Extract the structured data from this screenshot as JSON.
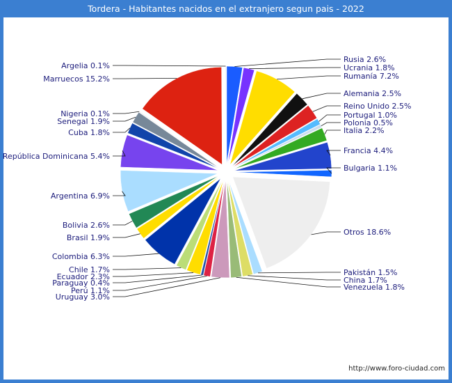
{
  "title": "Tordera - Habitantes nacidos en el extranjero segun pais - 2022",
  "source": "http://www.foro-ciudad.com",
  "chart_data": {
    "type": "pie",
    "title": "Tordera - Habitantes nacidos en el extranjero segun pais - 2022",
    "slices": [
      {
        "label": "Rusia",
        "value": 2.6,
        "display": "Rusia 2.6%",
        "color": "#1a5cff"
      },
      {
        "label": "Ucrania",
        "value": 1.8,
        "display": "Ucrania 1.8%",
        "color": "#7733ff"
      },
      {
        "label": "Rumanía",
        "value": 7.2,
        "display": "Rumanía 7.2%",
        "color": "#ffdd00"
      },
      {
        "label": "Alemania",
        "value": 2.5,
        "display": "Alemania 2.5%",
        "color": "#111111"
      },
      {
        "label": "Reino Unido",
        "value": 2.5,
        "display": "Reino Unido 2.5%",
        "color": "#dd2222"
      },
      {
        "label": "Portugal",
        "value": 1.0,
        "display": "Portugal 1.0%",
        "color": "#55bbff"
      },
      {
        "label": "Polonia",
        "value": 0.5,
        "display": "Polonia 0.5%",
        "color": "#ccddee"
      },
      {
        "label": "Italia",
        "value": 2.2,
        "display": "Italia 2.2%",
        "color": "#33aa22"
      },
      {
        "label": "Francia",
        "value": 4.4,
        "display": "Francia 4.4%",
        "color": "#2244cc"
      },
      {
        "label": "Bulgaria",
        "value": 1.1,
        "display": "Bulgaria 1.1%",
        "color": "#1166ff"
      },
      {
        "label": "Otros",
        "value": 18.6,
        "display": "Otros 18.6%",
        "color": "#eeeeee"
      },
      {
        "label": "Pakistán",
        "value": 1.5,
        "display": "Pakistán 1.5%",
        "color": "#aaddff"
      },
      {
        "label": "China",
        "value": 1.7,
        "display": "China 1.7%",
        "color": "#dddd66"
      },
      {
        "label": "Venezuela",
        "value": 1.8,
        "display": "Venezuela 1.8%",
        "color": "#99bb77"
      },
      {
        "label": "Uruguay",
        "value": 3.0,
        "display": "Uruguay 3.0%",
        "color": "#cc99bb"
      },
      {
        "label": "Perú",
        "value": 1.1,
        "display": "Perú 1.1%",
        "color": "#dd2244"
      },
      {
        "label": "Paraguay",
        "value": 0.4,
        "display": "Paraguay 0.4%",
        "color": "#2255aa"
      },
      {
        "label": "Ecuador",
        "value": 2.3,
        "display": "Ecuador 2.3%",
        "color": "#ffdd00"
      },
      {
        "label": "Chile",
        "value": 1.7,
        "display": "Chile 1.7%",
        "color": "#bbdd77"
      },
      {
        "label": "Colombia",
        "value": 6.3,
        "display": "Colombia 6.3%",
        "color": "#0033aa"
      },
      {
        "label": "Brasil",
        "value": 1.9,
        "display": "Brasil 1.9%",
        "color": "#ffdd00"
      },
      {
        "label": "Bolivia",
        "value": 2.6,
        "display": "Bolivia 2.6%",
        "color": "#228855"
      },
      {
        "label": "Argentina",
        "value": 6.9,
        "display": "Argentina 6.9%",
        "color": "#aaddff"
      },
      {
        "label": "República Dominicana",
        "value": 5.4,
        "display": "República Dominicana 5.4%",
        "color": "#7744ee"
      },
      {
        "label": "Cuba",
        "value": 1.8,
        "display": "Cuba 1.8%",
        "color": "#1144aa"
      },
      {
        "label": "Senegal",
        "value": 1.9,
        "display": "Senegal 1.9%",
        "color": "#778899"
      },
      {
        "label": "Nigeria",
        "value": 0.1,
        "display": "Nigeria 0.1%",
        "color": "#dddddd"
      },
      {
        "label": "Marruecos",
        "value": 15.2,
        "display": "Marruecos 15.2%",
        "color": "#dd2211"
      },
      {
        "label": "Argelia",
        "value": 0.1,
        "display": "Argelia 0.1%",
        "color": "#dddddd"
      }
    ]
  }
}
